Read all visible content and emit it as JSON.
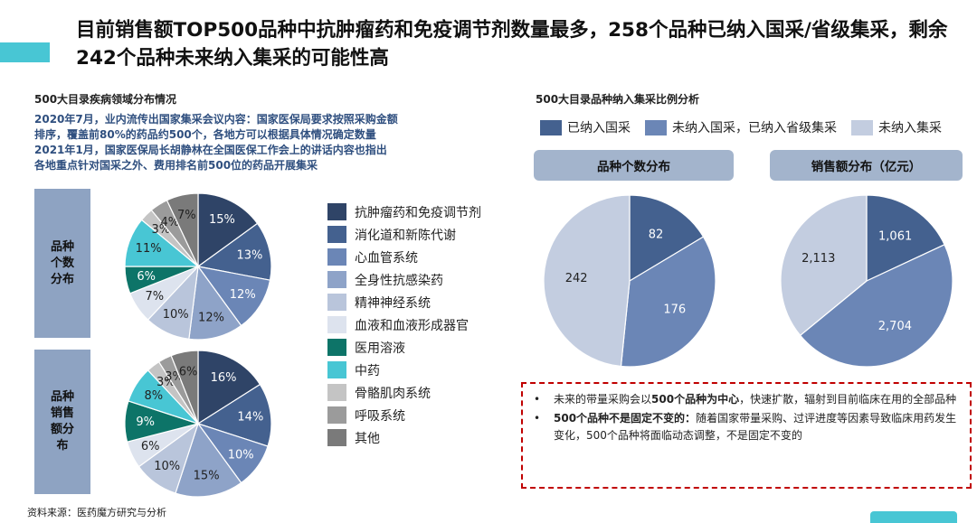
{
  "header": {
    "title": "目前销售额TOP500品种中抗肿瘤药和免疫调节剂数量最多，258个品种已纳入国采/省级集采，剩余242个品种未来纳入集采的可能性高"
  },
  "left_panel": {
    "subtitle": "500大目录疾病领域分布情况",
    "notes": [
      "2020年7月，业内流传出国家集采会议内容：国家医保局要求按照采购金额",
      "排序，覆盖前80%的药品约500个，各地方可以根据具体情况确定数量",
      "2021年1月，国家医保局长胡静林在全国医保工作会上的讲话内容也指出",
      "各地重点针对国采之外、费用排名前500位的药品开展集采"
    ],
    "row_labels": [
      "品种个数分布",
      "品种销售额分布"
    ]
  },
  "right_panel": {
    "subtitle": "500大目录品种纳入集采比例分析",
    "pill_labels": [
      "品种个数分布",
      "销售额分布（亿元）"
    ]
  },
  "callout": {
    "bullets": [
      {
        "bold_prefix": "",
        "text": "未来的带量采购会以",
        "bold_mid": "500个品种为中心",
        "text2": "，快速扩散，辐射到目前临床在用的全部品种"
      },
      {
        "bold_prefix": "500个品种不是固定不变的：",
        "text": "随着国家带量采购、过评进度等因素导致临床用药发生变化，500个品种将面临动态调整，不是固定不变的",
        "bold_mid": "",
        "text2": ""
      }
    ],
    "bullet_symbol": "•"
  },
  "footer": {
    "source": "资料来源：医药魔方研究与分析"
  },
  "chart_data": [
    {
      "type": "pie",
      "title": "品种个数分布",
      "categories": [
        "抗肿瘤药和免疫调节剂",
        "消化道和新陈代谢",
        "心血管系统",
        "全身性抗感染药",
        "精神神经系统",
        "血液和血液形成器官",
        "医用溶液",
        "中药",
        "骨骼肌肉系统",
        "呼吸系统",
        "其他"
      ],
      "values": [
        15,
        13,
        12,
        12,
        10,
        7,
        6,
        11,
        3,
        4,
        7
      ],
      "value_labels": [
        "15%",
        "13%",
        "12%",
        "12%",
        "10%",
        "7%",
        "6%",
        "11%",
        "3%",
        "4%",
        "7%"
      ],
      "colors": [
        "#2f4467",
        "#44618f",
        "#6b86b6",
        "#8ea3c8",
        "#b9c5db",
        "#dde3ee",
        "#0d7468",
        "#48c6d4",
        "#c4c4c4",
        "#9b9b9b",
        "#7a7a7a"
      ]
    },
    {
      "type": "pie",
      "title": "品种销售额分布",
      "categories": [
        "抗肿瘤药和免疫调节剂",
        "消化道和新陈代谢",
        "心血管系统",
        "全身性抗感染药",
        "精神神经系统",
        "血液和血液形成器官",
        "医用溶液",
        "中药",
        "骨骼肌肉系统",
        "呼吸系统",
        "其他"
      ],
      "values": [
        16,
        14,
        10,
        15,
        10,
        6,
        9,
        8,
        3,
        3,
        6
      ],
      "value_labels": [
        "16%",
        "14%",
        "10%",
        "15%",
        "10%",
        "6%",
        "9%",
        "8%",
        "3%",
        "3%",
        "6%"
      ],
      "colors": [
        "#2f4467",
        "#44618f",
        "#6b86b6",
        "#8ea3c8",
        "#b9c5db",
        "#dde3ee",
        "#0d7468",
        "#48c6d4",
        "#c4c4c4",
        "#9b9b9b",
        "#7a7a7a"
      ]
    },
    {
      "type": "pie",
      "title": "品种个数分布",
      "categories": [
        "已纳入国采",
        "未纳入国采，已纳入省级集采",
        "未纳入集采"
      ],
      "values": [
        82,
        176,
        242
      ],
      "value_labels": [
        "82",
        "176",
        "242"
      ],
      "colors": [
        "#44618f",
        "#6b86b6",
        "#c3cde0"
      ]
    },
    {
      "type": "pie",
      "title": "销售额分布（亿元）",
      "categories": [
        "已纳入国采",
        "未纳入国采，已纳入省级集采",
        "未纳入集采"
      ],
      "values": [
        1061,
        2704,
        2113
      ],
      "value_labels": [
        "1,061",
        "2,704",
        "2,113"
      ],
      "colors": [
        "#44618f",
        "#6b86b6",
        "#c3cde0"
      ]
    }
  ]
}
